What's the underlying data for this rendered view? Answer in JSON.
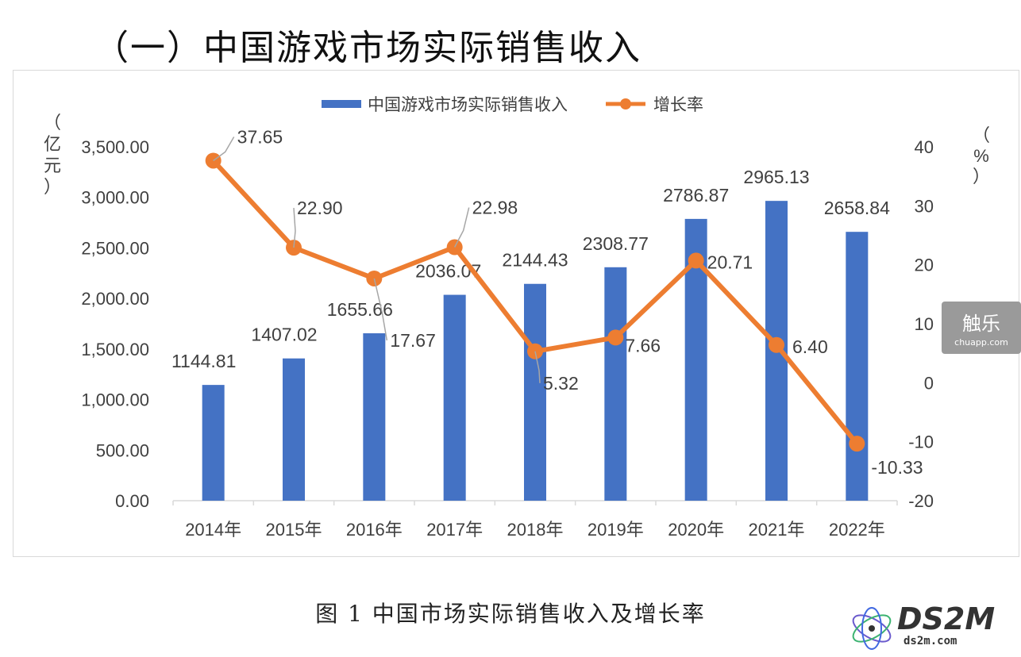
{
  "heading": "（一）中国游戏市场实际销售收入",
  "caption": "图 1 中国市场实际销售收入及增长率",
  "watermark": {
    "badge_big": "触乐",
    "badge_small": "chuapp.com",
    "brand": "DS2M",
    "site": "ds2m.com"
  },
  "colors": {
    "bar": "#4472C4",
    "line": "#ED7D31",
    "axis_text": "#404040",
    "grid": "#d9d9d9"
  },
  "chart_data": {
    "type": "bar",
    "categories": [
      "2014年",
      "2015年",
      "2016年",
      "2017年",
      "2018年",
      "2019年",
      "2020年",
      "2021年",
      "2022年"
    ],
    "series": [
      {
        "name": "中国游戏市场实际销售收入",
        "type": "bar",
        "axis": "left",
        "values": [
          1144.81,
          1407.02,
          1655.66,
          2036.07,
          2144.43,
          2308.77,
          2786.87,
          2965.13,
          2658.84
        ],
        "labels": [
          "1144.81",
          "1407.02",
          "1655.66",
          "2036.07",
          "2144.43",
          "2308.77",
          "2786.87",
          "2965.13",
          "2658.84"
        ]
      },
      {
        "name": "增长率",
        "type": "line",
        "axis": "right",
        "values": [
          37.65,
          22.9,
          17.67,
          22.98,
          5.32,
          7.66,
          20.71,
          6.4,
          -10.33
        ],
        "labels": [
          "37.65",
          "22.90",
          "17.67",
          "22.98",
          "5.32",
          "7.66",
          "20.71",
          "6.40",
          "-10.33"
        ]
      }
    ],
    "ylabel_left": "（亿元）",
    "ylabel_right": "（%）",
    "ylim_left": [
      0,
      3500
    ],
    "yticks_left": [
      "0.00",
      "500.00",
      "1,000.00",
      "1,500.00",
      "2,000.00",
      "2,500.00",
      "3,000.00",
      "3,500.00"
    ],
    "ylim_right": [
      -20,
      40
    ],
    "yticks_right": [
      "-20",
      "-10",
      "0",
      "10",
      "20",
      "30",
      "40"
    ],
    "legend_position": "top-center",
    "grid": false
  }
}
